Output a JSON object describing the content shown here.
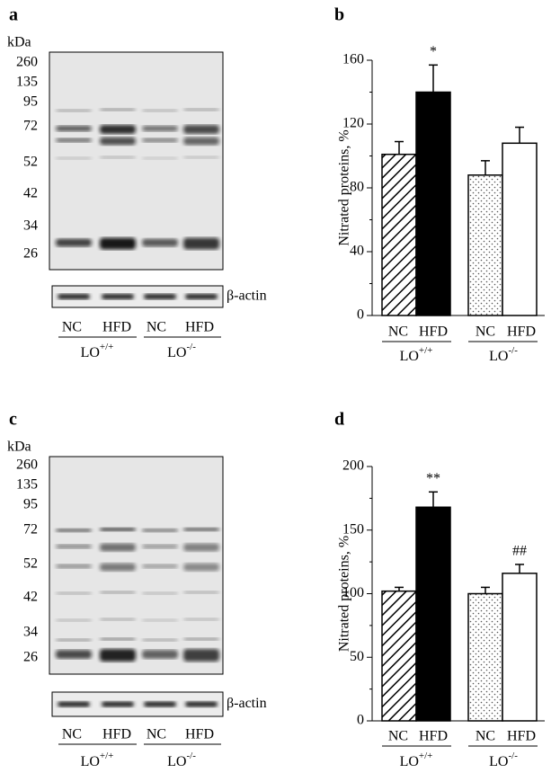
{
  "panels": [
    "a",
    "b",
    "c",
    "d"
  ],
  "blots": [
    {
      "unit": "kDa",
      "markers": [
        260,
        135,
        95,
        72,
        52,
        42,
        34,
        26
      ],
      "loading_control": "β-actin",
      "lanes": [
        "NC",
        "HFD",
        "NC",
        "HFD"
      ],
      "groups": [
        {
          "text": "LO",
          "sup": "+/+"
        },
        {
          "text": "LO",
          "sup": "-/-"
        }
      ]
    },
    {
      "unit": "kDa",
      "markers": [
        260,
        135,
        95,
        72,
        52,
        42,
        34,
        26
      ],
      "loading_control": "β-actin",
      "lanes": [
        "NC",
        "HFD",
        "NC",
        "HFD"
      ],
      "groups": [
        {
          "text": "LO",
          "sup": "+/+"
        },
        {
          "text": "LO",
          "sup": "-/-"
        }
      ]
    }
  ],
  "chart_data": [
    {
      "type": "bar",
      "y_label": "Nitrated proteins, %",
      "categories": [
        "NC",
        "HFD",
        "NC",
        "HFD"
      ],
      "groups": [
        {
          "text": "LO",
          "sup": "+/+"
        },
        {
          "text": "LO",
          "sup": "-/-"
        }
      ],
      "values": [
        101,
        140,
        88,
        108
      ],
      "errors": [
        8,
        17,
        9,
        10
      ],
      "fills": [
        "hatch",
        "#000000",
        "dots",
        "#ffffff"
      ],
      "bar_annotations": [
        null,
        "*",
        null,
        null
      ],
      "ylim": [
        0,
        160
      ],
      "yticks": [
        0,
        40,
        80,
        120,
        160
      ],
      "yminorticks": [
        20,
        60,
        100,
        140
      ]
    },
    {
      "type": "bar",
      "y_label": "Nitrated proteins, %",
      "categories": [
        "NC",
        "HFD",
        "NC",
        "HFD"
      ],
      "groups": [
        {
          "text": "LO",
          "sup": "+/+"
        },
        {
          "text": "LO",
          "sup": "-/-"
        }
      ],
      "values": [
        102,
        168,
        100,
        116
      ],
      "errors": [
        3,
        12,
        5,
        7
      ],
      "fills": [
        "hatch",
        "#000000",
        "dots",
        "#ffffff"
      ],
      "bar_annotations": [
        null,
        "**",
        null,
        "##"
      ],
      "ylim": [
        0,
        200
      ],
      "yticks": [
        0,
        50,
        100,
        150,
        200
      ],
      "yminorticks": [
        25,
        75,
        125,
        175
      ]
    }
  ]
}
